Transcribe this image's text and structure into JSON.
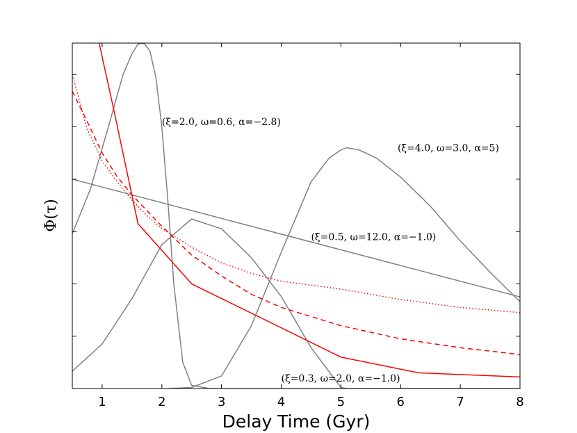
{
  "chart_data": {
    "type": "line",
    "xlabel": "Delay Time (Gyr)",
    "ylabel": "Φ(τ)",
    "xlim": [
      0.5,
      8
    ],
    "ylim": [
      0,
      6.6
    ],
    "x_ticks": [
      1,
      2,
      3,
      4,
      5,
      6,
      7,
      8
    ],
    "x_tick_labels": [
      "1",
      "2",
      "3",
      "4",
      "5",
      "6",
      "7",
      "8"
    ],
    "y_ticks": [
      1,
      2,
      3,
      4,
      5,
      6
    ],
    "y_tick_labels_visible": false,
    "grid": false,
    "legend": "none",
    "colors": {
      "gray": "#808080",
      "red": "#ff0000",
      "axis": "#000000"
    },
    "series": [
      {
        "style": "gray-solid",
        "x": [
          0.5,
          0.8,
          1.1,
          1.35,
          1.5,
          1.6,
          1.7,
          1.8,
          1.9,
          2.0,
          2.1,
          2.2,
          2.35,
          2.5,
          2.8,
          3.2,
          4.0,
          8.0
        ],
        "y": [
          2.96,
          3.8,
          4.98,
          6.0,
          6.4,
          6.58,
          6.6,
          6.45,
          5.95,
          5.0,
          3.6,
          2.0,
          0.5,
          0.06,
          0.0,
          0.0,
          0.0,
          0.0
        ]
      },
      {
        "style": "gray-solid",
        "x": [
          0.5,
          1.0,
          1.5,
          2.0,
          2.5,
          3.0,
          3.5,
          4.0,
          4.5,
          5.0,
          5.1,
          5.5,
          6.0,
          6.5,
          7.0,
          7.5,
          8.0
        ],
        "y": [
          0.33,
          0.85,
          1.72,
          2.75,
          3.24,
          3.05,
          2.5,
          1.76,
          0.78,
          0.02,
          0.0,
          0.0,
          0.0,
          0.0,
          0.0,
          0.0,
          0.0
        ]
      },
      {
        "style": "gray-solid",
        "x": [
          2.1,
          2.5,
          3.0,
          3.5,
          4.0,
          4.5,
          4.8,
          5.0,
          5.1,
          5.3,
          5.6,
          6.0,
          6.5,
          7.0,
          7.5,
          8.0
        ],
        "y": [
          0.0,
          0.02,
          0.24,
          1.2,
          2.6,
          3.95,
          4.4,
          4.56,
          4.6,
          4.56,
          4.4,
          4.04,
          3.48,
          2.82,
          2.22,
          1.66
        ]
      },
      {
        "style": "gray-solid",
        "x": [
          0.5,
          8.0
        ],
        "y": [
          4.0,
          1.75
        ]
      },
      {
        "style": "red-solid",
        "x": [
          0.95,
          1.2,
          1.6,
          2.5,
          5.0,
          6.3,
          8.0
        ],
        "y": [
          6.6,
          5.3,
          3.15,
          2.0,
          0.6,
          0.3,
          0.22
        ]
      },
      {
        "style": "red-dashed",
        "x": [
          0.5,
          0.75,
          1.0,
          1.25,
          1.5,
          1.75,
          2.0,
          2.5,
          3.0,
          3.5,
          4.0,
          5.0,
          6.0,
          7.0,
          8.0
        ],
        "y": [
          5.68,
          5.1,
          4.5,
          4.05,
          3.7,
          3.4,
          3.1,
          2.55,
          2.15,
          1.8,
          1.55,
          1.2,
          0.95,
          0.78,
          0.65
        ]
      },
      {
        "style": "red-dotted",
        "x": [
          0.5,
          0.75,
          1.0,
          1.25,
          1.5,
          1.75,
          2.0,
          2.5,
          3.0,
          3.5,
          4.0,
          5.0,
          6.0,
          7.0,
          8.0
        ],
        "y": [
          6.0,
          4.95,
          4.35,
          3.95,
          3.6,
          3.3,
          3.06,
          2.7,
          2.4,
          2.2,
          2.05,
          1.9,
          1.7,
          1.55,
          1.45
        ]
      }
    ],
    "annotations": [
      {
        "text": "(ξ=2.0, ω=0.6, α=−2.8)",
        "x": 2.0,
        "y": 5.1
      },
      {
        "text": "(ξ=4.0, ω=3.0, α=5)",
        "x": 5.95,
        "y": 4.6
      },
      {
        "text": "(ξ=0.5, ω=12.0, α=−1.0)",
        "x": 4.5,
        "y": 2.9
      },
      {
        "text": "(ξ=0.3, ω=2.0, α=−1.0)",
        "x": 4.0,
        "y": 0.2
      }
    ]
  }
}
